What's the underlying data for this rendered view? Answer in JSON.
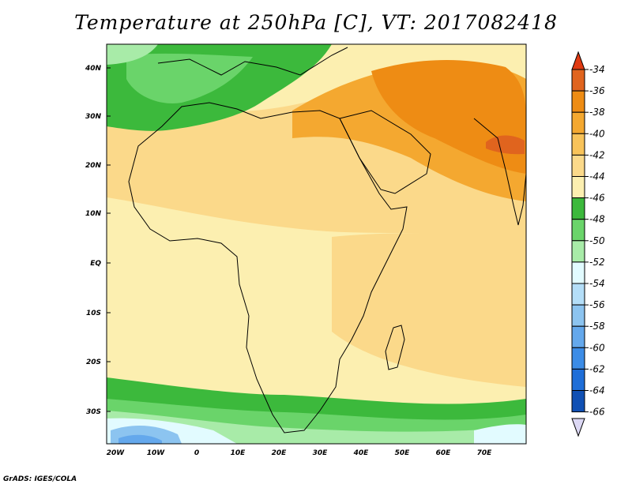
{
  "title": "Temperature at 250hPa [C], VT: 2017082418",
  "footer": "GrADS: IGES/COLA",
  "map": {
    "lat_labels": [
      "40N",
      "30N",
      "20N",
      "10N",
      "EQ",
      "10S",
      "20S",
      "30S"
    ],
    "lon_labels": [
      "20W",
      "10W",
      "0",
      "10E",
      "20E",
      "30E",
      "40E",
      "50E",
      "60E",
      "70E"
    ]
  },
  "colorbar": {
    "labels": [
      "-34",
      "-36",
      "-38",
      "-40",
      "-42",
      "-44",
      "-46",
      "-48",
      "-50",
      "-52",
      "-54",
      "-56",
      "-58",
      "-60",
      "-62",
      "-64",
      "-66"
    ],
    "colors": [
      "#e0641e",
      "#ee8c14",
      "#f4a830",
      "#f8c35a",
      "#fbd98a",
      "#fcefb0",
      "#3cb93c",
      "#6ad46a",
      "#a8eba8",
      "#e2fbff",
      "#b4def8",
      "#8cc4f0",
      "#64a8ec",
      "#3c8ce6",
      "#1e6ed8",
      "#1050b4",
      "#0a2878"
    ],
    "top_arrow_color": "#e03a12",
    "bottom_arrow_color": "#dcd8f4"
  }
}
